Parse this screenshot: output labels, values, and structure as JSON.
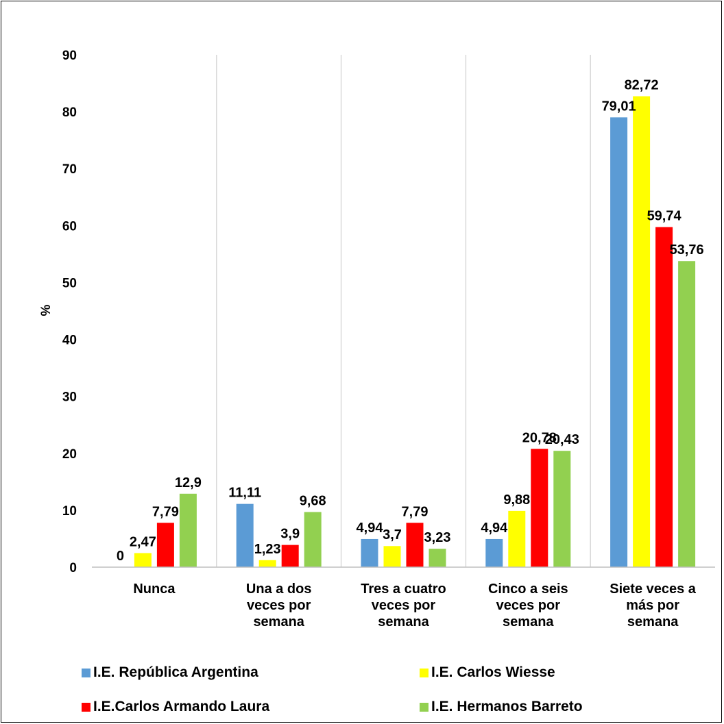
{
  "chart_data": {
    "type": "bar",
    "title": "",
    "xlabel": "",
    "ylabel": "%",
    "ylim": [
      0,
      90
    ],
    "yticks": [
      0,
      10,
      20,
      30,
      40,
      50,
      60,
      70,
      80,
      90
    ],
    "grid": "vertical separators between categories",
    "legend_position": "bottom",
    "categories": [
      [
        "Nunca"
      ],
      [
        "Una a dos",
        "veces por",
        "semana"
      ],
      [
        "Tres a cuatro",
        "veces por",
        "semana"
      ],
      [
        "Cinco a seis",
        "veces por",
        "semana"
      ],
      [
        "Siete veces a",
        "más por",
        "semana"
      ]
    ],
    "series": [
      {
        "name": "I.E. República Argentina",
        "color": "#5B9BD5",
        "values": [
          0,
          11.11,
          4.94,
          4.94,
          79.01
        ],
        "labels": [
          "0",
          "11,11",
          "4,94",
          "4,94",
          "79,01"
        ]
      },
      {
        "name": "I.E. Carlos Wiesse",
        "color": "#FFFF00",
        "values": [
          2.47,
          1.23,
          3.7,
          9.88,
          82.72
        ],
        "labels": [
          "2,47",
          "1,23",
          "3,7",
          "9,88",
          "82,72"
        ]
      },
      {
        "name": "I.E.Carlos Armando Laura",
        "color": "#FF0000",
        "values": [
          7.79,
          3.9,
          7.79,
          20.78,
          59.74
        ],
        "labels": [
          "7,79",
          "3,9",
          "7,79",
          "20,78",
          "59,74"
        ]
      },
      {
        "name": "I.E. Hermanos Barreto",
        "color": "#92D050",
        "values": [
          12.9,
          9.68,
          3.23,
          20.43,
          53.76
        ],
        "labels": [
          "12,9",
          "9,68",
          "3,23",
          "20,43",
          "53,76"
        ]
      }
    ]
  }
}
